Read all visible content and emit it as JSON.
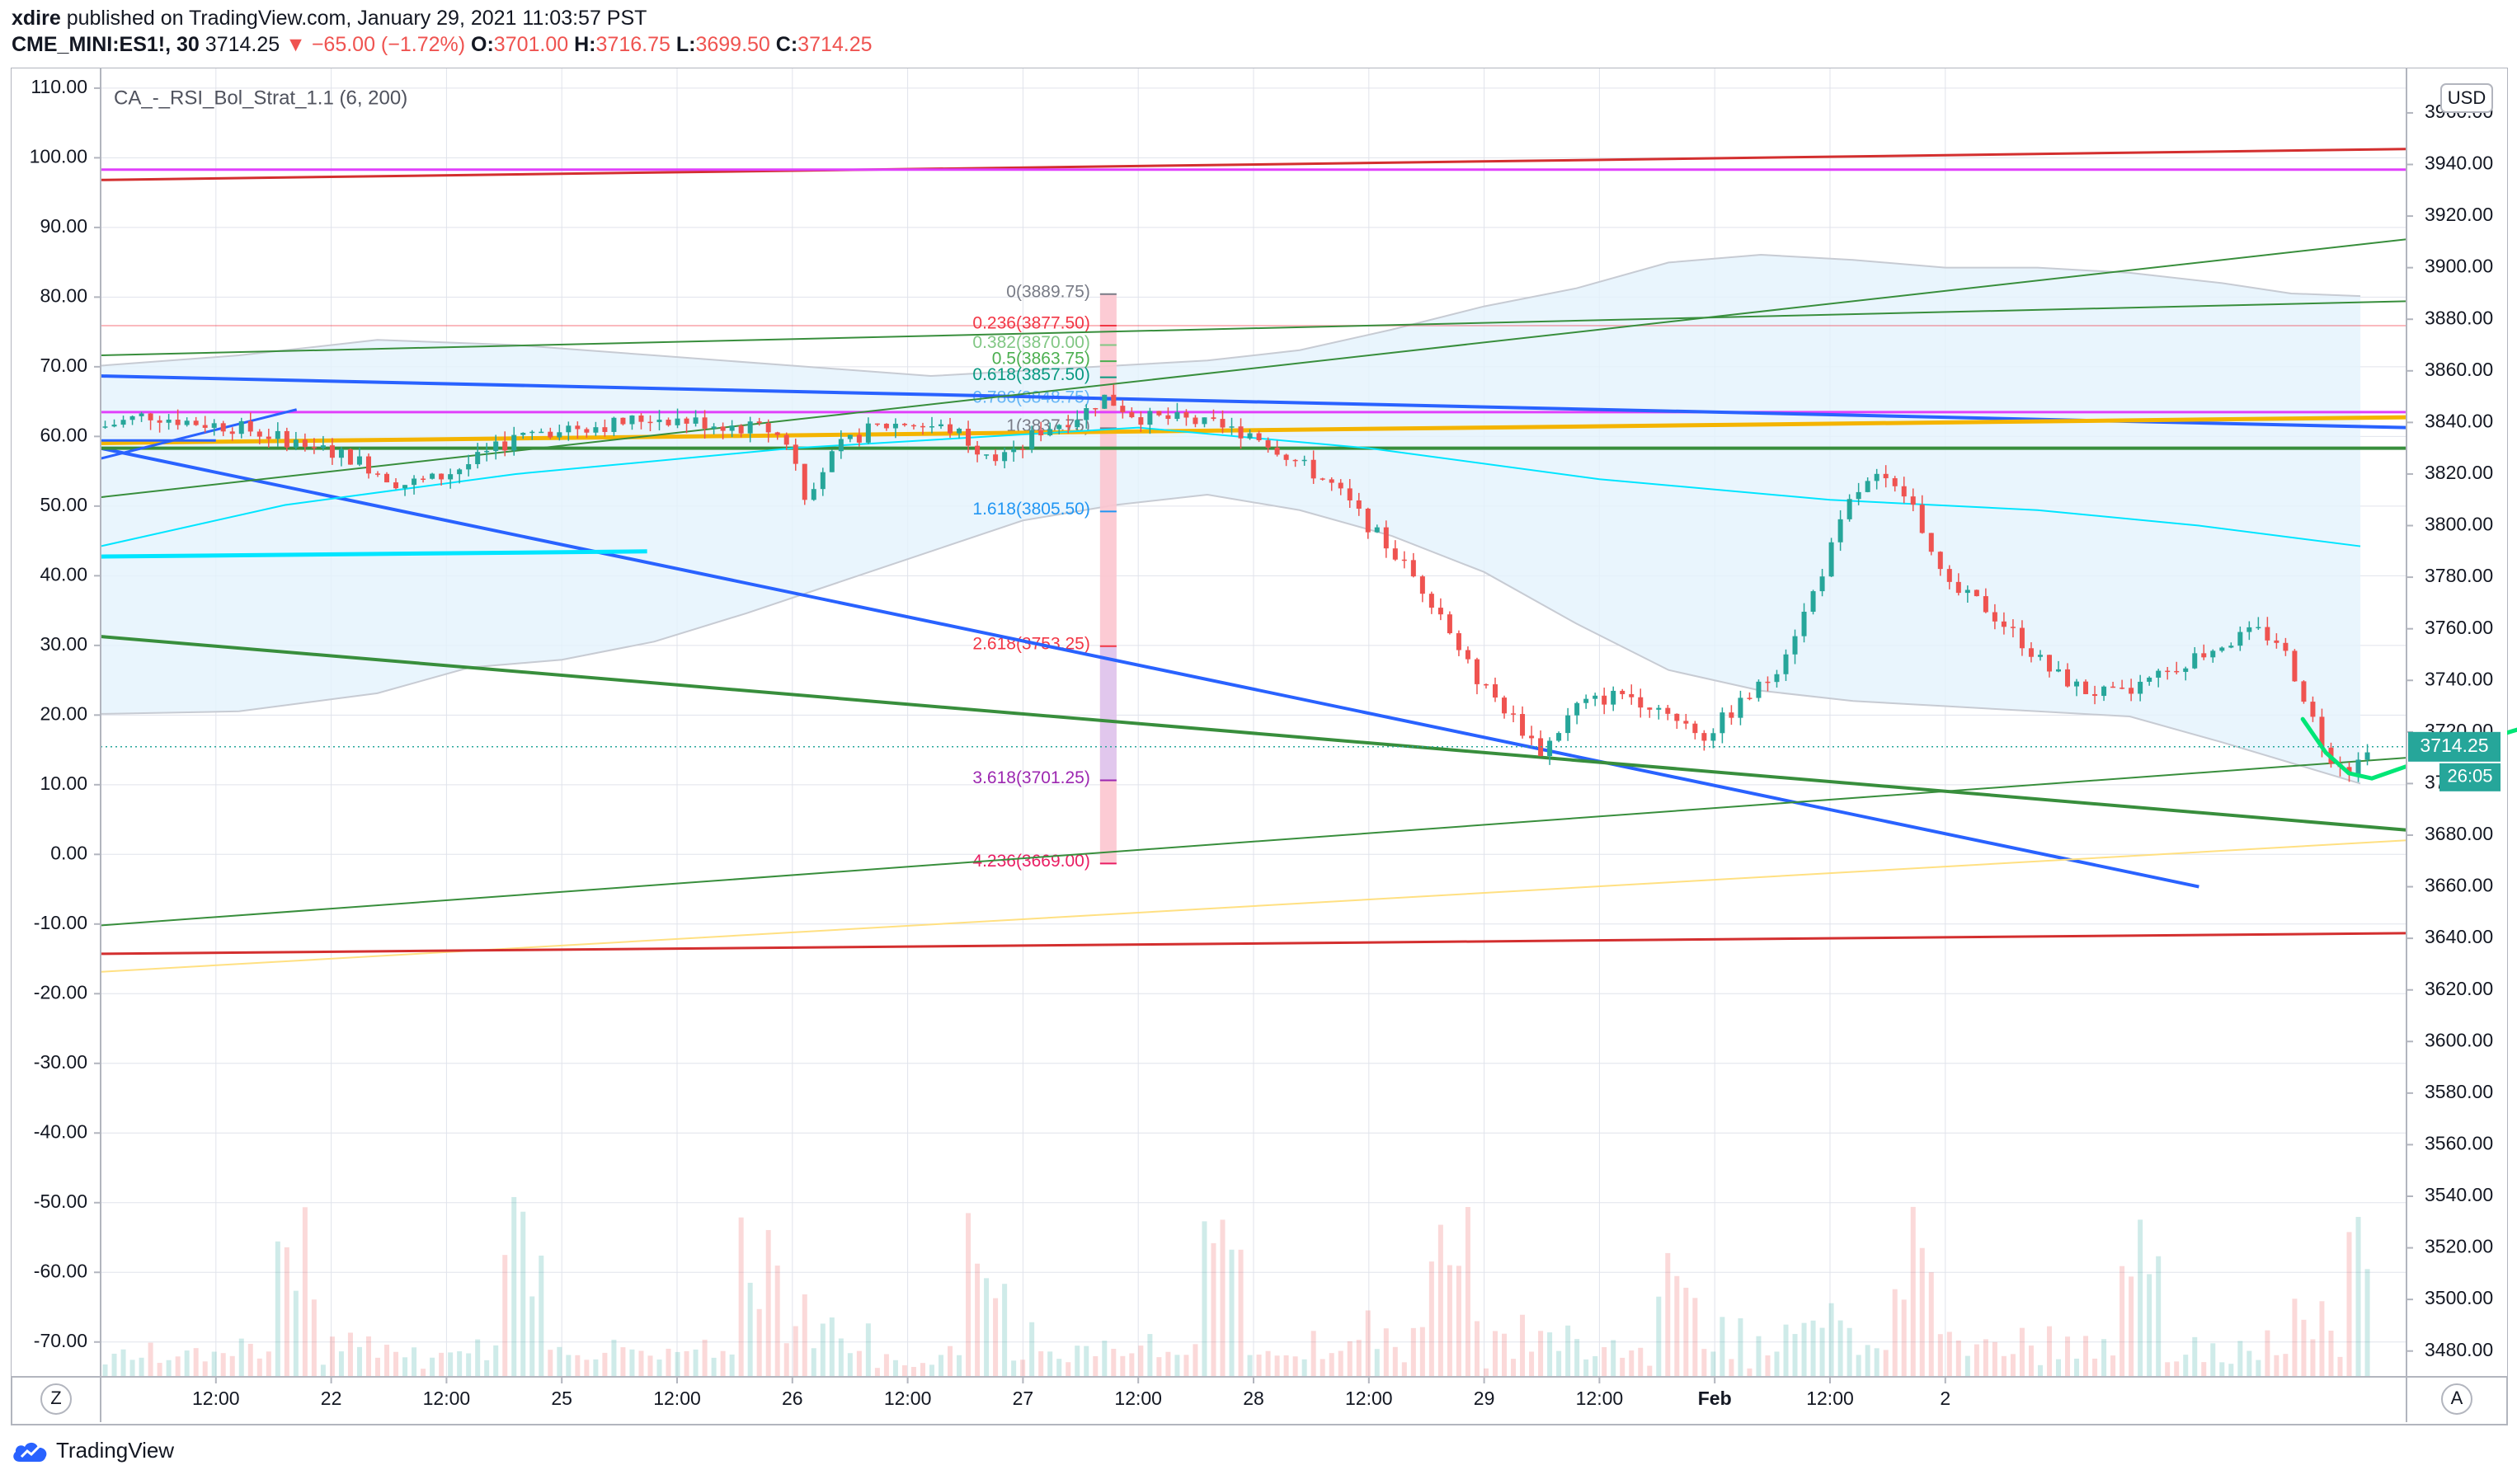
{
  "header": {
    "publisher": "xdire",
    "published_text": "published on TradingView.com, January 29, 2021 11:03:57 PST",
    "symbol": "CME_MINI:ES1!, 30",
    "last": "3714.25",
    "change": "▼ −65.00 (−1.72%)",
    "o_label": "O:",
    "o_value": "3701.00",
    "h_label": "H:",
    "h_value": "3716.75",
    "l_label": "L:",
    "l_value": "3699.50",
    "c_label": "C:",
    "c_value": "3714.25"
  },
  "indicator_label": "CA_-_RSI_Bol_Strat_1.1 (6, 200)",
  "currency": "USD",
  "price_badge": "3714.25",
  "countdown_badge": "26:05",
  "scale_buttons": {
    "left": "Z",
    "right": "A"
  },
  "footer": {
    "brand": "TradingView"
  },
  "colors": {
    "up": "#26a69a",
    "down": "#ef5350",
    "band_fill": "#e3f2fd",
    "fib_red": "#f23645",
    "fib_teal": "#089981",
    "fib_blue": "#2962ff",
    "trend_blue": "#2962ff",
    "trend_green": "#388e3c",
    "trend_red": "#d32f2f",
    "gold": "#f4b400",
    "magenta": "#e040fb",
    "cyan": "#00e5ff",
    "lime": "#00e676"
  },
  "chart_data": {
    "type": "candlestick",
    "symbol": "CME_MINI:ES1!",
    "interval": "30",
    "y_left_ticks": [
      "110.00",
      "100.00",
      "90.00",
      "80.00",
      "70.00",
      "60.00",
      "50.00",
      "40.00",
      "30.00",
      "20.00",
      "10.00",
      "0.00",
      "-10.00",
      "-20.00",
      "-30.00",
      "-40.00",
      "-50.00",
      "-60.00",
      "-70.00"
    ],
    "y_left_range": [
      -75,
      112
    ],
    "y_right_ticks": [
      "3960.00",
      "3940.00",
      "3920.00",
      "3900.00",
      "3880.00",
      "3860.00",
      "3840.00",
      "3820.00",
      "3800.00",
      "3780.00",
      "3760.00",
      "3740.00",
      "3720.00",
      "3700.00",
      "3680.00",
      "3660.00",
      "3640.00",
      "3620.00",
      "3600.00",
      "3580.00",
      "3560.00",
      "3540.00",
      "3520.00",
      "3500.00",
      "3480.00"
    ],
    "y_right_range": [
      3470,
      3975
    ],
    "x_ticks": [
      "12:00",
      "22",
      "12:00",
      "25",
      "12:00",
      "26",
      "12:00",
      "27",
      "12:00",
      "28",
      "12:00",
      "29",
      "12:00",
      "Feb",
      "12:00",
      "2"
    ],
    "x_tick_bold": [
      "Feb"
    ],
    "x_range": [
      0,
      10
    ],
    "x_ticks_pos": [
      0.5,
      1,
      1.5,
      2,
      2.5,
      3,
      3.5,
      4,
      4.5,
      5,
      5.5,
      6,
      6.5,
      7,
      7.5,
      8
    ],
    "price_path": [
      [
        0,
        3838
      ],
      [
        0.2,
        3843
      ],
      [
        0.4,
        3840
      ],
      [
        0.6,
        3838
      ],
      [
        0.9,
        3831
      ],
      [
        1.1,
        3826
      ],
      [
        1.3,
        3816
      ],
      [
        1.45,
        3818
      ],
      [
        1.6,
        3824
      ],
      [
        1.8,
        3834
      ],
      [
        2.0,
        3838
      ],
      [
        2.2,
        3839
      ],
      [
        2.4,
        3842
      ],
      [
        2.6,
        3840
      ],
      [
        2.9,
        3837
      ],
      [
        3.0,
        3831
      ],
      [
        3.05,
        3812
      ],
      [
        3.1,
        3818
      ],
      [
        3.2,
        3830
      ],
      [
        3.35,
        3838
      ],
      [
        3.5,
        3840
      ],
      [
        3.7,
        3837
      ],
      [
        3.8,
        3830
      ],
      [
        3.95,
        3826
      ],
      [
        4.05,
        3836
      ],
      [
        4.25,
        3843
      ],
      [
        4.35,
        3850
      ],
      [
        4.5,
        3842
      ],
      [
        4.7,
        3841
      ],
      [
        4.9,
        3837
      ],
      [
        5.0,
        3836
      ],
      [
        5.2,
        3824
      ],
      [
        5.35,
        3815
      ],
      [
        5.5,
        3800
      ],
      [
        5.65,
        3785
      ],
      [
        5.8,
        3768
      ],
      [
        5.95,
        3742
      ],
      [
        6.1,
        3728
      ],
      [
        6.25,
        3712
      ],
      [
        6.4,
        3730
      ],
      [
        6.6,
        3735
      ],
      [
        6.8,
        3728
      ],
      [
        6.95,
        3718
      ],
      [
        7.1,
        3730
      ],
      [
        7.25,
        3742
      ],
      [
        7.4,
        3768
      ],
      [
        7.6,
        3812
      ],
      [
        7.7,
        3818
      ],
      [
        7.85,
        3810
      ],
      [
        8.0,
        3776
      ],
      [
        8.15,
        3770
      ],
      [
        8.3,
        3758
      ],
      [
        8.45,
        3744
      ],
      [
        8.6,
        3736
      ],
      [
        8.75,
        3734
      ],
      [
        8.9,
        3740
      ],
      [
        9.05,
        3748
      ],
      [
        9.2,
        3754
      ],
      [
        9.35,
        3759
      ],
      [
        9.45,
        3755
      ],
      [
        9.55,
        3735
      ],
      [
        9.65,
        3712
      ],
      [
        9.75,
        3706
      ],
      [
        9.85,
        3714.25
      ]
    ],
    "volume_scale_note": "",
    "fibonacci": {
      "levels": [
        {
          "ratio": "0",
          "price": "3889.75",
          "label": "0(3889.75)"
        },
        {
          "ratio": "0.236",
          "price": "3877.50",
          "label": "0.236(3877.50)"
        },
        {
          "ratio": "0.382",
          "price": "3870.00",
          "label": "0.382(3870.00)"
        },
        {
          "ratio": "0.5",
          "price": "3863.75",
          "label": "0.5(3863.75)"
        },
        {
          "ratio": "0.618",
          "price": "3857.50",
          "label": "0.618(3857.50)"
        },
        {
          "ratio": "0.786",
          "price": "3848.75",
          "label": "0.786(3848.75)"
        },
        {
          "ratio": "1",
          "price": "3837.75",
          "label": "1(3837.75)"
        },
        {
          "ratio": "1.618",
          "price": "3805.50",
          "label": "1.618(3805.50)"
        },
        {
          "ratio": "2.618",
          "price": "3753.25",
          "label": "2.618(3753.25)"
        },
        {
          "ratio": "3.618",
          "price": "3701.25",
          "label": "3.618(3701.25)"
        },
        {
          "ratio": "4.236",
          "price": "3669.00",
          "label": "4.236(3669.00)"
        }
      ]
    },
    "indicator": "CA_-_RSI_Bol_Strat_1.1 (6, 200)",
    "last_price": "3714.25"
  }
}
